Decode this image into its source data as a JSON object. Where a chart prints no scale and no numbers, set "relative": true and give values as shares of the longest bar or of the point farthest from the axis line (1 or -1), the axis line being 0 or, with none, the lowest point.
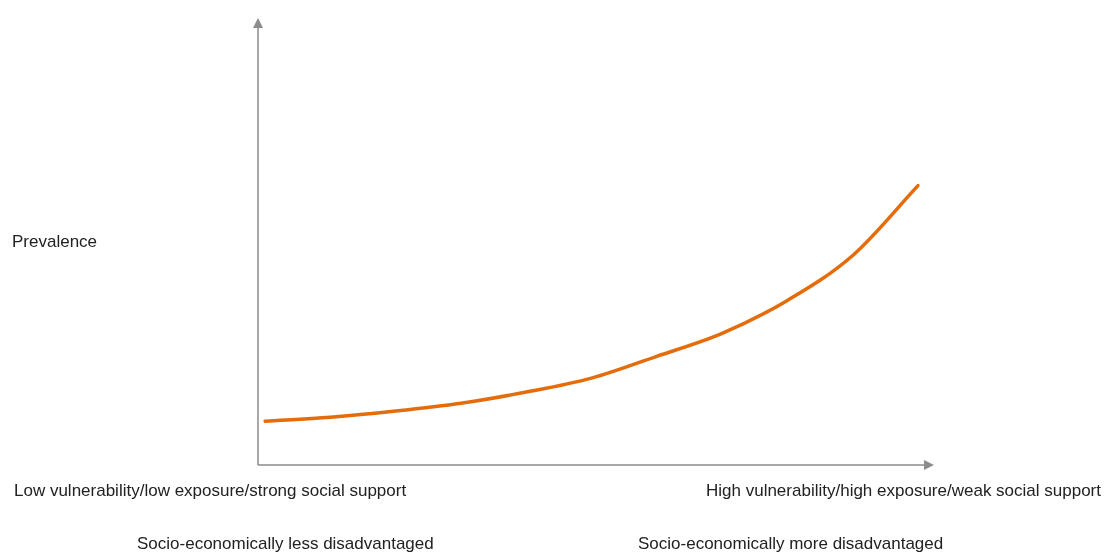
{
  "chart_data": {
    "type": "line",
    "relative": true,
    "categories": [
      null,
      null,
      null,
      null,
      null,
      null,
      null,
      null,
      null,
      null,
      null
    ],
    "series": [
      {
        "color": "#e46c0a",
        "values": [
          0.157,
          0.171,
          0.193,
          0.221,
          0.261,
          0.311,
          0.389,
          0.471,
          0.589,
          0.75,
          1
        ]
      }
    ],
    "marker": "none",
    "line_style": "solid",
    "legend": false,
    "annotations": [
      "Prevalence",
      "Low vulnerability/low exposure/strong social support",
      "High vulnerability/high exposure/weak social support",
      "Socio-economically less disadvantaged",
      "Socio-economically more disadvantaged"
    ]
  }
}
